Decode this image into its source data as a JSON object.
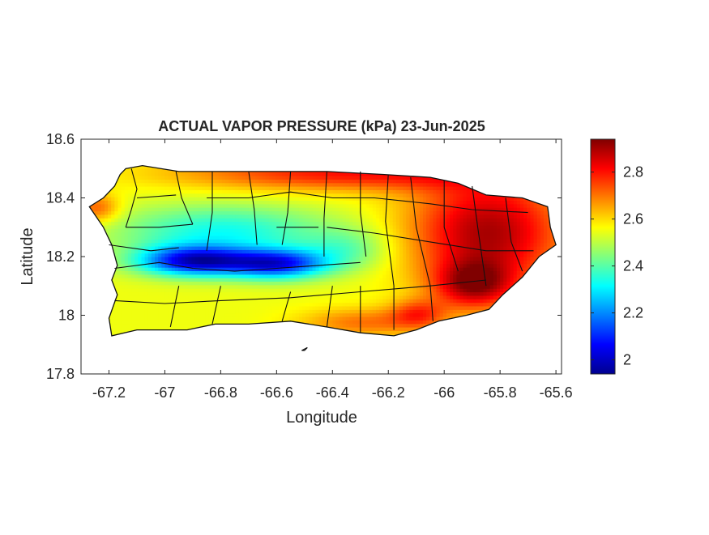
{
  "chart_data": {
    "type": "heatmap",
    "title": "ACTUAL VAPOR PRESSURE (kPa) 23-Jun-2025",
    "xlabel": "Longitude",
    "ylabel": "Latitude",
    "xlim": [
      -67.3,
      -65.58
    ],
    "ylim": [
      17.8,
      18.6
    ],
    "x_ticks": [
      -67.2,
      -67,
      -66.8,
      -66.6,
      -66.4,
      -66.2,
      -66,
      -65.8,
      -65.6
    ],
    "x_tick_labels": [
      "-67.2",
      "-67",
      "-66.8",
      "-66.6",
      "-66.4",
      "-66.2",
      "-66",
      "-65.8",
      "-65.6"
    ],
    "y_ticks": [
      17.8,
      18,
      18.2,
      18.4,
      18.6
    ],
    "y_tick_labels": [
      "17.8",
      "18",
      "18.2",
      "18.4",
      "18.6"
    ],
    "colorbar": {
      "colormap": "jet",
      "range": [
        1.94,
        2.94
      ],
      "ticks": [
        2,
        2.2,
        2.4,
        2.6,
        2.8
      ],
      "tick_labels": [
        "2",
        "2.2",
        "2.4",
        "2.6",
        "2.8"
      ]
    },
    "grid": false,
    "outline": [
      [
        -67.27,
        18.37
      ],
      [
        -67.22,
        18.4
      ],
      [
        -67.18,
        18.44
      ],
      [
        -67.16,
        18.48
      ],
      [
        -67.14,
        18.5
      ],
      [
        -67.08,
        18.51
      ],
      [
        -66.95,
        18.49
      ],
      [
        -66.8,
        18.49
      ],
      [
        -66.62,
        18.49
      ],
      [
        -66.42,
        18.49
      ],
      [
        -66.22,
        18.48
      ],
      [
        -66.05,
        18.47
      ],
      [
        -65.95,
        18.45
      ],
      [
        -65.85,
        18.41
      ],
      [
        -65.72,
        18.4
      ],
      [
        -65.63,
        18.37
      ],
      [
        -65.62,
        18.3
      ],
      [
        -65.6,
        18.24
      ],
      [
        -65.66,
        18.2
      ],
      [
        -65.72,
        18.13
      ],
      [
        -65.79,
        18.07
      ],
      [
        -65.84,
        18.02
      ],
      [
        -65.92,
        18.0
      ],
      [
        -66.02,
        17.98
      ],
      [
        -66.1,
        17.95
      ],
      [
        -66.18,
        17.93
      ],
      [
        -66.3,
        17.94
      ],
      [
        -66.42,
        17.96
      ],
      [
        -66.55,
        17.98
      ],
      [
        -66.7,
        17.97
      ],
      [
        -66.82,
        17.97
      ],
      [
        -66.92,
        17.95
      ],
      [
        -67.02,
        17.95
      ],
      [
        -67.1,
        17.95
      ],
      [
        -67.19,
        17.93
      ],
      [
        -67.2,
        17.99
      ],
      [
        -67.17,
        18.07
      ],
      [
        -67.19,
        18.12
      ],
      [
        -67.17,
        18.17
      ],
      [
        -67.19,
        18.24
      ],
      [
        -67.22,
        18.3
      ],
      [
        -67.27,
        18.37
      ]
    ],
    "islets": [
      [
        [
          -66.5,
          17.88
        ],
        [
          -66.49,
          17.89
        ],
        [
          -66.51,
          17.88
        ],
        [
          -66.5,
          17.88
        ]
      ]
    ],
    "field": {
      "base": 2.55,
      "features": [
        {
          "lon": -66.9,
          "lat": 18.18,
          "sx": 0.2,
          "sy": 0.05,
          "amp": -0.5
        },
        {
          "lon": -66.6,
          "lat": 18.17,
          "sx": 0.18,
          "sy": 0.05,
          "amp": -0.45
        },
        {
          "lon": -66.8,
          "lat": 18.28,
          "sx": 0.38,
          "sy": 0.09,
          "amp": -0.22
        },
        {
          "lon": -66.35,
          "lat": 18.22,
          "sx": 0.15,
          "sy": 0.07,
          "amp": -0.12
        },
        {
          "lon": -65.85,
          "lat": 18.28,
          "sx": 0.28,
          "sy": 0.2,
          "amp": 0.35
        },
        {
          "lon": -66.35,
          "lat": 18.48,
          "sx": 0.6,
          "sy": 0.06,
          "amp": 0.25
        },
        {
          "lon": -65.9,
          "lat": 18.1,
          "sx": 0.14,
          "sy": 0.08,
          "amp": 0.28
        },
        {
          "lon": -66.3,
          "lat": 17.97,
          "sx": 0.22,
          "sy": 0.05,
          "amp": 0.15
        },
        {
          "lon": -66.1,
          "lat": 18.0,
          "sx": 0.1,
          "sy": 0.05,
          "amp": 0.18
        },
        {
          "lon": -67.25,
          "lat": 18.36,
          "sx": 0.08,
          "sy": 0.05,
          "amp": 0.18
        }
      ]
    },
    "borders": [
      [
        [
          -67.12,
          18.5
        ],
        [
          -67.1,
          18.43
        ],
        [
          -67.12,
          18.36
        ],
        [
          -67.14,
          18.3
        ]
      ],
      [
        [
          -67.14,
          18.3
        ],
        [
          -67.02,
          18.3
        ],
        [
          -66.9,
          18.31
        ]
      ],
      [
        [
          -66.96,
          18.49
        ],
        [
          -66.94,
          18.4
        ],
        [
          -66.9,
          18.31
        ]
      ],
      [
        [
          -67.18,
          18.16
        ],
        [
          -67.02,
          18.18
        ],
        [
          -66.9,
          18.16
        ],
        [
          -66.75,
          18.15
        ],
        [
          -66.6,
          18.16
        ],
        [
          -66.45,
          18.17
        ],
        [
          -66.3,
          18.18
        ]
      ],
      [
        [
          -66.83,
          18.49
        ],
        [
          -66.83,
          18.35
        ],
        [
          -66.85,
          18.22
        ]
      ],
      [
        [
          -66.7,
          18.49
        ],
        [
          -66.68,
          18.36
        ],
        [
          -66.67,
          18.24
        ]
      ],
      [
        [
          -66.55,
          18.49
        ],
        [
          -66.56,
          18.35
        ],
        [
          -66.58,
          18.24
        ]
      ],
      [
        [
          -66.42,
          18.49
        ],
        [
          -66.43,
          18.33
        ],
        [
          -66.43,
          18.2
        ]
      ],
      [
        [
          -66.3,
          18.49
        ],
        [
          -66.3,
          18.35
        ],
        [
          -66.28,
          18.2
        ]
      ],
      [
        [
          -66.2,
          18.48
        ],
        [
          -66.21,
          18.32
        ],
        [
          -66.18,
          18.1
        ],
        [
          -66.18,
          17.95
        ]
      ],
      [
        [
          -66.12,
          18.47
        ],
        [
          -66.1,
          18.3
        ],
        [
          -66.05,
          18.1
        ],
        [
          -66.04,
          17.98
        ]
      ],
      [
        [
          -66.0,
          18.46
        ],
        [
          -66.0,
          18.3
        ],
        [
          -65.95,
          18.15
        ]
      ],
      [
        [
          -65.9,
          18.44
        ],
        [
          -65.88,
          18.3
        ],
        [
          -65.85,
          18.1
        ]
      ],
      [
        [
          -65.78,
          18.4
        ],
        [
          -65.76,
          18.25
        ],
        [
          -65.72,
          18.15
        ]
      ],
      [
        [
          -66.8,
          18.1
        ],
        [
          -66.83,
          17.97
        ]
      ],
      [
        [
          -66.95,
          18.1
        ],
        [
          -66.98,
          17.96
        ]
      ],
      [
        [
          -66.55,
          18.08
        ],
        [
          -66.58,
          17.98
        ]
      ],
      [
        [
          -66.4,
          18.1
        ],
        [
          -66.42,
          17.96
        ]
      ],
      [
        [
          -66.3,
          18.1
        ],
        [
          -66.3,
          17.94
        ]
      ],
      [
        [
          -67.18,
          18.05
        ],
        [
          -67.0,
          18.04
        ],
        [
          -66.8,
          18.05
        ],
        [
          -66.55,
          18.06
        ],
        [
          -66.3,
          18.08
        ],
        [
          -66.05,
          18.1
        ],
        [
          -65.85,
          18.12
        ]
      ],
      [
        [
          -67.2,
          18.24
        ],
        [
          -67.05,
          18.22
        ],
        [
          -66.95,
          18.23
        ]
      ],
      [
        [
          -66.85,
          18.4
        ],
        [
          -66.7,
          18.4
        ],
        [
          -66.55,
          18.42
        ],
        [
          -66.4,
          18.4
        ],
        [
          -66.25,
          18.4
        ],
        [
          -66.05,
          18.38
        ],
        [
          -65.9,
          18.36
        ],
        [
          -65.7,
          18.35
        ]
      ],
      [
        [
          -66.42,
          18.3
        ],
        [
          -66.25,
          18.28
        ],
        [
          -66.05,
          18.25
        ],
        [
          -65.85,
          18.22
        ],
        [
          -65.68,
          18.22
        ]
      ],
      [
        [
          -66.6,
          18.3
        ],
        [
          -66.45,
          18.3
        ]
      ],
      [
        [
          -67.1,
          18.4
        ],
        [
          -66.96,
          18.41
        ]
      ]
    ]
  }
}
